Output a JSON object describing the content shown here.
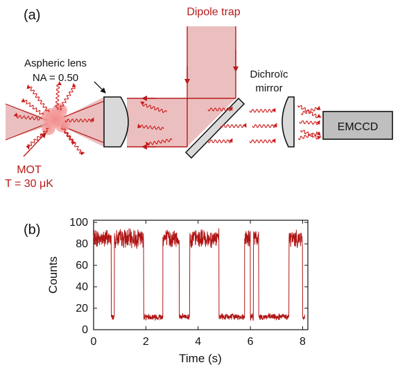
{
  "panel_a": {
    "label": "(a)",
    "dipole_trap_label": "Dipole trap",
    "lens_label_line1": "Aspheric lens",
    "lens_label_line2": "NA = 0.50",
    "dichroic_label_line1": "Dichroïc",
    "dichroic_label_line2": "mirror",
    "camera_label": "EMCCD",
    "mot_label": "MOT",
    "temperature_label": "T = 30 μK",
    "colors": {
      "beam": "#e8b4b4",
      "beam_edge": "#b81a1a",
      "photon": "#cc1a1a",
      "optics": "#d9d9d9"
    }
  },
  "panel_b": {
    "label": "(b)"
  },
  "chart_data": {
    "type": "line",
    "xlabel": "Time (s)",
    "ylabel": "Counts",
    "xlim": [
      0,
      8.2
    ],
    "ylim": [
      0,
      102
    ],
    "xticks": [
      "0",
      "2",
      "4",
      "6",
      "8"
    ],
    "yticks": [
      "0",
      "20",
      "40",
      "60",
      "80",
      "100"
    ],
    "xtick_values": [
      0,
      2,
      4,
      6,
      8
    ],
    "ytick_values": [
      0,
      20,
      40,
      60,
      80,
      100
    ],
    "grid": false,
    "series_color": "#b01515",
    "high_level": 85,
    "low_level": 12,
    "noise_high": 7,
    "noise_low": 2.5,
    "segments": [
      {
        "start": 0.0,
        "end": 0.68,
        "state": "high"
      },
      {
        "start": 0.68,
        "end": 0.8,
        "state": "low"
      },
      {
        "start": 0.8,
        "end": 1.92,
        "state": "high"
      },
      {
        "start": 1.92,
        "end": 2.65,
        "state": "low"
      },
      {
        "start": 2.65,
        "end": 3.28,
        "state": "high"
      },
      {
        "start": 3.28,
        "end": 3.68,
        "state": "low"
      },
      {
        "start": 3.68,
        "end": 4.8,
        "state": "high"
      },
      {
        "start": 4.8,
        "end": 5.78,
        "state": "low"
      },
      {
        "start": 5.78,
        "end": 6.0,
        "state": "high"
      },
      {
        "start": 6.0,
        "end": 6.12,
        "state": "low"
      },
      {
        "start": 6.12,
        "end": 6.32,
        "state": "high"
      },
      {
        "start": 6.32,
        "end": 7.48,
        "state": "low"
      },
      {
        "start": 7.48,
        "end": 8.0,
        "state": "high"
      },
      {
        "start": 8.0,
        "end": 8.08,
        "state": "low"
      }
    ]
  }
}
